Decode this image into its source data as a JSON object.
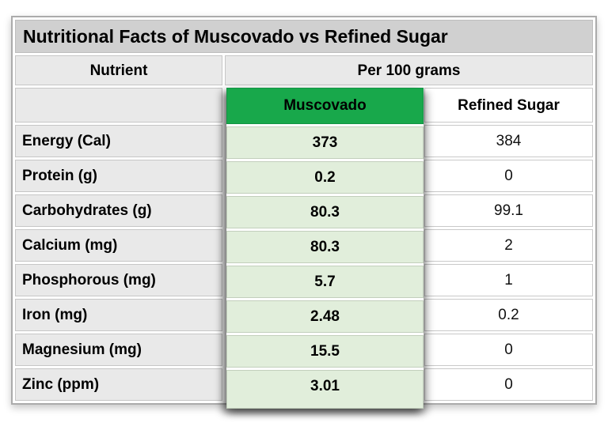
{
  "title": "Nutritional Facts of Muscovado vs Refined Sugar",
  "table": {
    "nutrient_header": "Nutrient",
    "group_header": "Per 100 grams",
    "muscovado_header": "Muscovado",
    "refined_header": "Refined Sugar",
    "rows": [
      {
        "nutrient": "Energy (Cal)",
        "muscovado": "373",
        "refined": "384"
      },
      {
        "nutrient": "Protein (g)",
        "muscovado": "0.2",
        "refined": "0"
      },
      {
        "nutrient": "Carbohydrates (g)",
        "muscovado": "80.3",
        "refined": "99.1"
      },
      {
        "nutrient": "Calcium (mg)",
        "muscovado": "80.3",
        "refined": "2"
      },
      {
        "nutrient": "Phosphorous (mg)",
        "muscovado": "5.7",
        "refined": "1"
      },
      {
        "nutrient": "Iron (mg)",
        "muscovado": "2.48",
        "refined": "0.2"
      },
      {
        "nutrient": "Magnesium (mg)",
        "muscovado": "15.5",
        "refined": "0"
      },
      {
        "nutrient": "Zinc (ppm)",
        "muscovado": "3.01",
        "refined": "0"
      }
    ]
  },
  "colors": {
    "muscovado_header_bg": "#18a84b",
    "muscovado_cell_bg": "#e1eedb",
    "title_row_bg": "#d0d0d0",
    "header_cell_bg": "#e9e9e9"
  },
  "chart_data": {
    "type": "table",
    "title": "Nutritional Facts of Muscovado vs Refined Sugar",
    "group_header": "Per 100 grams",
    "columns": [
      "Nutrient",
      "Muscovado",
      "Refined Sugar"
    ],
    "rows": [
      [
        "Energy (Cal)",
        373,
        384
      ],
      [
        "Protein (g)",
        0.2,
        0
      ],
      [
        "Carbohydrates (g)",
        80.3,
        99.1
      ],
      [
        "Calcium (mg)",
        80.3,
        2
      ],
      [
        "Phosphorous (mg)",
        5.7,
        1
      ],
      [
        "Iron (mg)",
        2.48,
        0.2
      ],
      [
        "Magnesium (mg)",
        15.5,
        0
      ],
      [
        "Zinc (ppm)",
        3.01,
        0
      ]
    ]
  }
}
